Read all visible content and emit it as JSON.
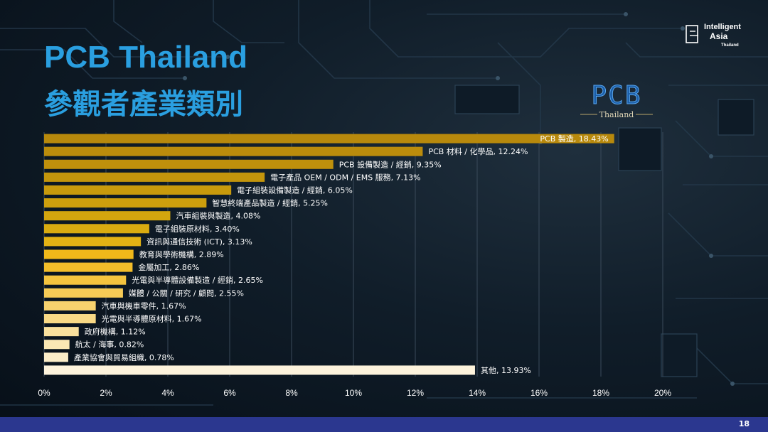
{
  "slide": {
    "title_line1": "PCB Thailand",
    "title_line2": "參觀者產業類別",
    "page_number": "18"
  },
  "logos": {
    "pcb_logo": {
      "text": "PCB",
      "subtitle": "Thailand"
    },
    "intelligent_asia": {
      "line1": "Intelligent",
      "line2": "Asia",
      "line3": "Thailand"
    }
  },
  "chart_data": {
    "type": "bar",
    "orientation": "horizontal",
    "categories": [
      "PCB 製造",
      "PCB 材料 / 化學品",
      "PCB 設備製造 / 經銷",
      "電子產品 OEM / ODM / EMS 服務",
      "電子組裝設備製造 / 經銷",
      "智慧終端產品製造 / 經銷",
      "汽車組裝與製造",
      "電子組裝原材料",
      "資訊與通信技術 (ICT)",
      "教育與學術機構",
      "金屬加工",
      "光電與半導體設備製造 / 經銷",
      "媒體 / 公關 / 研究 / 顧問",
      "汽車與機車零件",
      "光電與半導體原材料",
      "政府機構",
      "航太 / 海事",
      "產業協會與貿易組織",
      "其他"
    ],
    "values": [
      18.43,
      12.24,
      9.35,
      7.13,
      6.05,
      5.25,
      4.08,
      3.4,
      3.13,
      2.89,
      2.86,
      2.65,
      2.55,
      1.67,
      1.67,
      1.12,
      0.82,
      0.78,
      13.93
    ],
    "data_labels": [
      "PCB 製造, 18.43%",
      "PCB 材料 / 化學品, 12.24%",
      "PCB 設備製造 / 經銷, 9.35%",
      "電子產品 OEM / ODM / EMS 服務, 7.13%",
      "電子組裝設備製造 / 經銷, 6.05%",
      "智慧終端產品製造 / 經銷, 5.25%",
      "汽車組裝與製造, 4.08%",
      "電子組裝原材料, 3.40%",
      "資訊與通信技術 (ICT), 3.13%",
      "教育與學術機構, 2.89%",
      "金屬加工, 2.86%",
      "光電與半導體設備製造 / 經銷, 2.65%",
      "媒體 / 公關 / 研究 / 顧問, 2.55%",
      "汽車與機車零件, 1.67%",
      "光電與半導體原材料, 1.67%",
      "政府機構, 1.12%",
      "航太 / 海事, 0.82%",
      "產業協會與貿易組織, 0.78%",
      "其他, 13.93%"
    ],
    "bar_colors": [
      "#b8890c",
      "#bb8c0c",
      "#bf900c",
      "#c3950c",
      "#c89a0c",
      "#cd9f0d",
      "#d3a50e",
      "#d9ab10",
      "#e3b214",
      "#f0b81a",
      "#f3bd2a",
      "#f5c43e",
      "#f6cb56",
      "#f7d26e",
      "#f8d985",
      "#f9e09c",
      "#fae7b4",
      "#fbedc8",
      "#fdf3dc"
    ],
    "xlim": [
      0,
      20
    ],
    "xticks": [
      "0%",
      "2%",
      "4%",
      "6%",
      "8%",
      "10%",
      "12%",
      "14%",
      "16%",
      "18%",
      "20%"
    ],
    "grid": true,
    "label_placement": "outside-end"
  }
}
